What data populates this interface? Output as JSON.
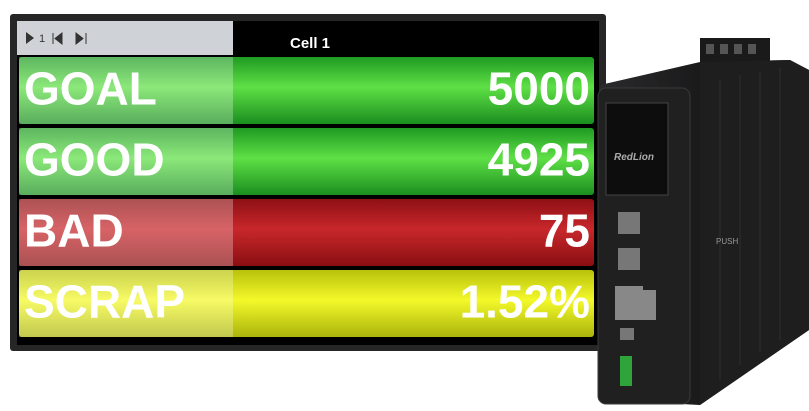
{
  "header": {
    "pager": "1",
    "title": "Cell 1"
  },
  "rows": [
    {
      "label": "GOAL",
      "value": 5000,
      "color": "green"
    },
    {
      "label": "GOOD",
      "value": 4925,
      "color": "green"
    },
    {
      "label": "BAD",
      "value": 75,
      "color": "red"
    },
    {
      "label": "SCRAP",
      "value": "1.52%",
      "color": "yellow"
    }
  ],
  "device": {
    "brand": "RedLion",
    "button": "PUSH"
  }
}
